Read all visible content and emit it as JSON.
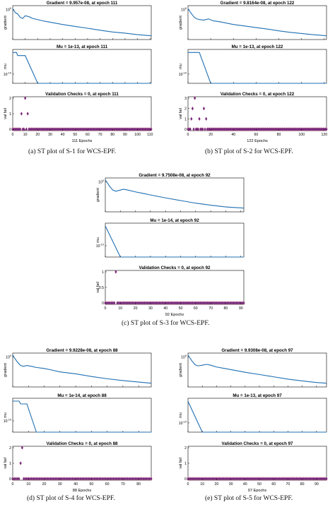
{
  "chart_data": [
    {
      "id": "s1",
      "type": "line",
      "caption": "(a)  ST plot of S-1 for WCS-EPF.",
      "xlim": [
        0,
        111
      ],
      "xticks": [
        0,
        10,
        20,
        30,
        40,
        50,
        60,
        70,
        80,
        90,
        100,
        110
      ],
      "xlabel": "111 Epochs",
      "panels": [
        {
          "title": "Gradient = 9.957e-08, at epoch 111",
          "ylabel": "gradient",
          "yscale": "log",
          "ylim": [
            1e-08,
            10
          ],
          "yticks": [
            "10^0"
          ],
          "series": [
            {
              "x": [
                0,
                2,
                4,
                6,
                8,
                10,
                13,
                16,
                20,
                25,
                30,
                40,
                50,
                60,
                70,
                80,
                90,
                100,
                111
              ],
              "y": [
                1.5,
                0.15,
                0.06,
                0.008,
                0.004,
                0.02,
                0.012,
                0.004,
                0.002,
                0.0008,
                0.0004,
                0.0001,
                3e-05,
                1e-05,
                3e-06,
                1e-06,
                5e-07,
                2e-07,
                9.957e-08
              ]
            }
          ]
        },
        {
          "title": "Mu = 1e-13, at epoch 111",
          "ylabel": "mu",
          "yscale": "log",
          "ylim": [
            1e-13,
            0.01
          ],
          "yticks": [
            "10^-10"
          ],
          "series": [
            {
              "x": [
                0,
                3,
                4,
                10,
                20,
                111
              ],
              "y": [
                0.001,
                0.001,
                0.0001,
                0.0001,
                1e-13,
                1e-13
              ]
            }
          ]
        },
        {
          "title": "Validation Checks = 0, at epoch 111",
          "ylabel": "val fail",
          "yscale": "linear",
          "ylim": [
            0,
            2
          ],
          "yticks": [
            0,
            1,
            2
          ],
          "points": {
            "x_nonzero": [
              7,
              10,
              12
            ],
            "y_nonzero": [
              1,
              2,
              1
            ],
            "count": 111
          }
        }
      ]
    },
    {
      "id": "s2",
      "type": "line",
      "caption": "(b)  ST plot of S-2 for WCS-EPF.",
      "xlim": [
        0,
        122
      ],
      "xticks": [
        0,
        20,
        40,
        60,
        80,
        100,
        120
      ],
      "xlabel": "122 Epochs",
      "panels": [
        {
          "title": "Gradient = 9.8164e-08, at epoch 122",
          "ylabel": "gradient",
          "yscale": "log",
          "ylim": [
            1e-08,
            10
          ],
          "yticks": [
            "10^0"
          ],
          "series": [
            {
              "x": [
                0,
                2,
                4,
                6,
                8,
                10,
                14,
                18,
                22,
                30,
                40,
                50,
                60,
                70,
                80,
                90,
                100,
                110,
                122
              ],
              "y": [
                1.5,
                0.2,
                0.03,
                0.006,
                0.003,
                0.002,
                0.0015,
                0.003,
                0.001,
                0.0004,
                0.0001,
                4e-05,
                1.5e-05,
                6e-06,
                2e-06,
                8e-07,
                4e-07,
                2e-07,
                9.8164e-08
              ]
            }
          ]
        },
        {
          "title": "Mu = 1e-13, at epoch 122",
          "ylabel": "mu",
          "yscale": "log",
          "ylim": [
            1e-13,
            0.01
          ],
          "yticks": [
            "10^-10"
          ],
          "series": [
            {
              "x": [
                0,
                10,
                20,
                122
              ],
              "y": [
                0.001,
                0.001,
                1e-13,
                1e-13
              ]
            }
          ]
        },
        {
          "title": "Validation Checks = 0, at epoch 122",
          "ylabel": "val fail",
          "yscale": "linear",
          "ylim": [
            0,
            3
          ],
          "yticks": [
            0,
            1,
            2,
            3
          ],
          "points": {
            "x_nonzero": [
              3,
              4,
              6,
              10,
              14,
              16
            ],
            "y_nonzero": [
              1,
              2,
              3,
              1,
              2,
              1
            ],
            "count": 122
          }
        }
      ]
    },
    {
      "id": "s3",
      "type": "line",
      "caption": "(c)  ST plot of S-3 for WCS-EPF.",
      "xlim": [
        0,
        92
      ],
      "xticks": [
        0,
        10,
        20,
        30,
        40,
        50,
        60,
        70,
        80,
        90
      ],
      "xlabel": "92 Epochs",
      "panels": [
        {
          "title": "Gradient = 9.7508e-08, at epoch 92",
          "ylabel": "gradient",
          "yscale": "log",
          "ylim": [
            1e-08,
            10
          ],
          "yticks": [
            "10^0"
          ],
          "series": [
            {
              "x": [
                0,
                1,
                3,
                5,
                7,
                10,
                12,
                15,
                20,
                25,
                30,
                40,
                50,
                60,
                70,
                80,
                92
              ],
              "y": [
                3,
                0.8,
                0.05,
                0.006,
                0.003,
                0.006,
                0.01,
                0.006,
                0.002,
                0.0008,
                0.0003,
                5e-05,
                1e-05,
                2e-06,
                6e-07,
                2e-07,
                9.7508e-08
              ]
            }
          ]
        },
        {
          "title": "Mu = 1e-14, at epoch 92",
          "ylabel": "mu",
          "yscale": "log",
          "ylim": [
            1e-14,
            0.01
          ],
          "yticks": [
            "10^-10"
          ],
          "series": [
            {
              "x": [
                0,
                10,
                92
              ],
              "y": [
                0.001,
                1e-14,
                1e-14
              ]
            }
          ]
        },
        {
          "title": "Validation Checks = 0, at epoch 92",
          "ylabel": "val fail",
          "yscale": "linear",
          "ylim": [
            0,
            1
          ],
          "yticks": [
            0,
            0.5,
            1
          ],
          "points": {
            "x_nonzero": [
              7
            ],
            "y_nonzero": [
              1
            ],
            "count": 92
          }
        }
      ]
    },
    {
      "id": "s4",
      "type": "line",
      "caption": "(d)  ST plot of S-4 for WCS-EPF.",
      "xlim": [
        0,
        88
      ],
      "xticks": [
        0,
        10,
        20,
        30,
        40,
        50,
        60,
        70,
        80
      ],
      "xlabel": "88 Epochs",
      "panels": [
        {
          "title": "Gradient = 9.9228e-08, at epoch 88",
          "ylabel": "gradient",
          "yscale": "log",
          "ylim": [
            1e-08,
            10
          ],
          "yticks": [
            "10^0"
          ],
          "series": [
            {
              "x": [
                0,
                1,
                3,
                5,
                7,
                9,
                12,
                15,
                20,
                25,
                30,
                40,
                50,
                60,
                70,
                80,
                88
              ],
              "y": [
                3,
                0.6,
                0.04,
                0.005,
                0.003,
                0.005,
                0.003,
                0.0015,
                0.0008,
                0.0003,
                0.0001,
                3e-05,
                6e-06,
                1.5e-06,
                5e-07,
                2e-07,
                9.9228e-08
              ]
            }
          ]
        },
        {
          "title": "Mu = 1e-14, at epoch 88",
          "ylabel": "mu",
          "yscale": "log",
          "ylim": [
            1e-14,
            0.01
          ],
          "yticks": [
            "10^-10"
          ],
          "series": [
            {
              "x": [
                0,
                4,
                5,
                9,
                15,
                88
              ],
              "y": [
                0.001,
                0.001,
                0.0001,
                0.0001,
                1e-14,
                1e-14
              ]
            }
          ]
        },
        {
          "title": "Validation Checks = 0, at epoch 88",
          "ylabel": "val fail",
          "yscale": "linear",
          "ylim": [
            0,
            2
          ],
          "yticks": [
            0,
            1,
            2
          ],
          "points": {
            "x_nonzero": [
              5,
              6
            ],
            "y_nonzero": [
              1,
              2
            ],
            "count": 88
          }
        }
      ]
    },
    {
      "id": "s5",
      "type": "line",
      "caption": "(e)  ST plot of S-5 for WCS-EPF.",
      "xlim": [
        0,
        97
      ],
      "xticks": [
        0,
        10,
        20,
        30,
        40,
        50,
        60,
        70,
        80,
        90
      ],
      "xlabel": "97 Epochs",
      "panels": [
        {
          "title": "Gradient = 9.9308e-08, at epoch 97",
          "ylabel": "gradient",
          "yscale": "log",
          "ylim": [
            1e-08,
            10
          ],
          "yticks": [
            "10^0"
          ],
          "series": [
            {
              "x": [
                0,
                1,
                3,
                5,
                7,
                10,
                13,
                16,
                20,
                25,
                30,
                40,
                50,
                60,
                70,
                80,
                90,
                97
              ],
              "y": [
                3,
                0.8,
                0.06,
                0.008,
                0.004,
                0.006,
                0.01,
                0.006,
                0.002,
                0.0009,
                0.0004,
                8e-05,
                2e-05,
                5e-06,
                1.2e-06,
                4e-07,
                1.5e-07,
                9.9308e-08
              ]
            }
          ]
        },
        {
          "title": "Mu = 1e-13, at epoch 97",
          "ylabel": "mu",
          "yscale": "log",
          "ylim": [
            1e-13,
            0.01
          ],
          "yticks": [
            "10^-10"
          ],
          "series": [
            {
              "x": [
                0,
                10,
                97
              ],
              "y": [
                0.001,
                1e-13,
                1e-13
              ]
            }
          ]
        },
        {
          "title": "Validation Checks = 0, at epoch 97",
          "ylabel": "val fail",
          "yscale": "linear",
          "ylim": [
            0,
            2
          ],
          "yticks": [
            0,
            1,
            2
          ],
          "points": {
            "x_nonzero": [],
            "y_nonzero": [],
            "count": 97
          }
        }
      ]
    }
  ],
  "colors": {
    "line": "#1f6fb2",
    "marker_fill": "#5b2a86",
    "marker_edge": "#c0306a",
    "axis": "#000000"
  }
}
